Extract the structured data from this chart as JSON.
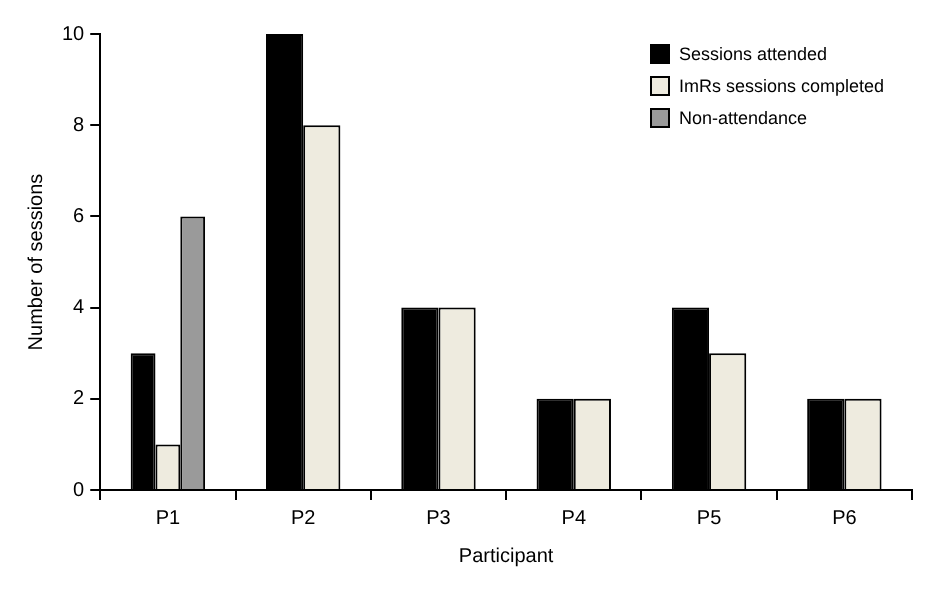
{
  "chart_data": {
    "type": "bar",
    "xlabel": "Participant",
    "ylabel": "Number of sessions",
    "categories": [
      "P1",
      "P2",
      "P3",
      "P4",
      "P5",
      "P6"
    ],
    "series": [
      {
        "name": "Sessions attended",
        "color": "#000000",
        "values": [
          3,
          10,
          4,
          2,
          4,
          2
        ]
      },
      {
        "name": "ImRs sessions completed",
        "color": "#eeebdf",
        "values": [
          1,
          8,
          4,
          2,
          3,
          2
        ]
      },
      {
        "name": "Non-attendance",
        "color": "#9a9a9a",
        "values": [
          6,
          null,
          null,
          null,
          null,
          null
        ]
      }
    ],
    "ylim": [
      0,
      10
    ],
    "yticks": [
      0,
      2,
      4,
      6,
      8,
      10
    ],
    "grid": false,
    "legend": "top right"
  }
}
